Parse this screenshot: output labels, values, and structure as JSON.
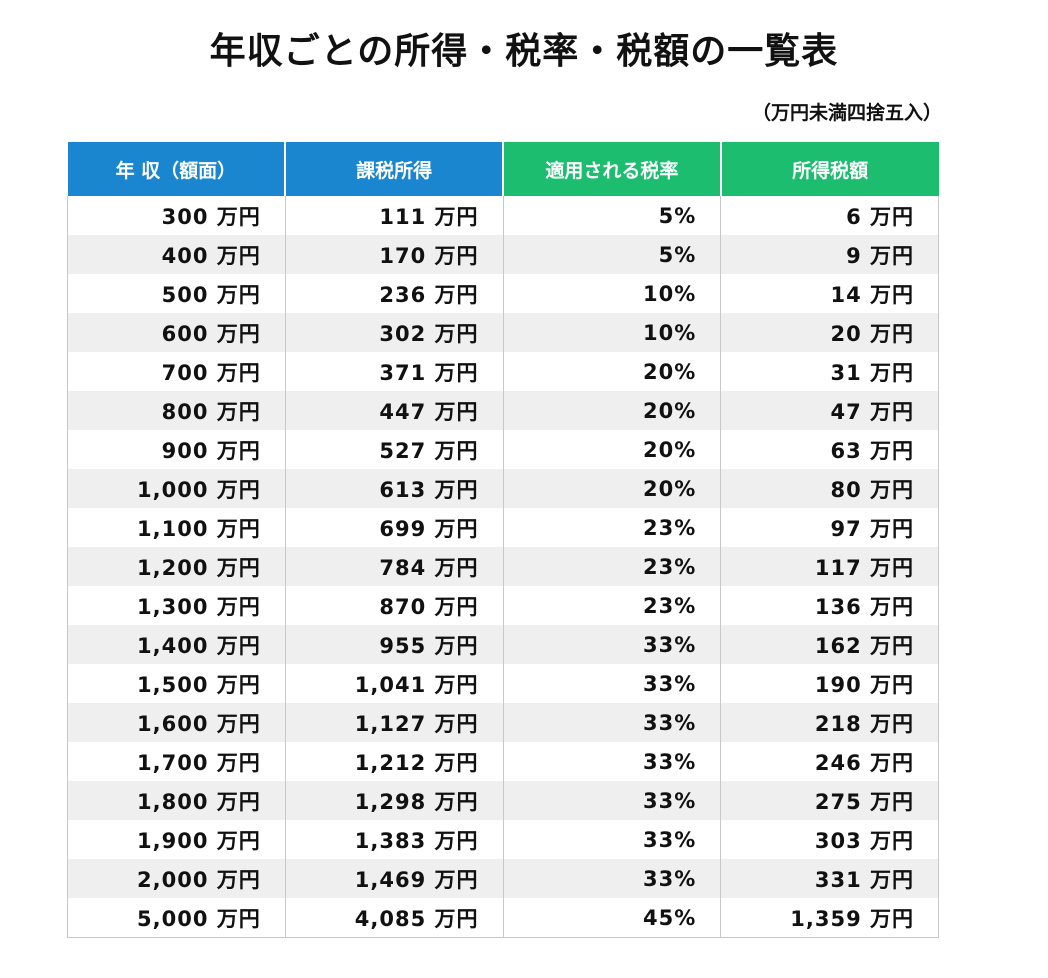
{
  "title": "年収ごとの所得・税率・税額の一覧表",
  "note": "（万円未満四捨五入）",
  "headers": [
    "年 収（額面）",
    "課税所得",
    "適用される税率",
    "所得税額"
  ],
  "rows": [
    [
      "300 万円",
      "111 万円",
      "5%",
      "6 万円"
    ],
    [
      "400 万円",
      "170 万円",
      "5%",
      "9 万円"
    ],
    [
      "500 万円",
      "236 万円",
      "10%",
      "14 万円"
    ],
    [
      "600 万円",
      "302 万円",
      "10%",
      "20 万円"
    ],
    [
      "700 万円",
      "371 万円",
      "20%",
      "31 万円"
    ],
    [
      "800 万円",
      "447 万円",
      "20%",
      "47 万円"
    ],
    [
      "900 万円",
      "527 万円",
      "20%",
      "63 万円"
    ],
    [
      "1,000 万円",
      "613 万円",
      "20%",
      "80 万円"
    ],
    [
      "1,100 万円",
      "699 万円",
      "23%",
      "97 万円"
    ],
    [
      "1,200 万円",
      "784 万円",
      "23%",
      "117 万円"
    ],
    [
      "1,300 万円",
      "870 万円",
      "23%",
      "136 万円"
    ],
    [
      "1,400 万円",
      "955 万円",
      "33%",
      "162 万円"
    ],
    [
      "1,500 万円",
      "1,041 万円",
      "33%",
      "190 万円"
    ],
    [
      "1,600 万円",
      "1,127 万円",
      "33%",
      "218 万円"
    ],
    [
      "1,700 万円",
      "1,212 万円",
      "33%",
      "246 万円"
    ],
    [
      "1,800 万円",
      "1,298 万円",
      "33%",
      "275 万円"
    ],
    [
      "1,900 万円",
      "1,383 万円",
      "33%",
      "303 万円"
    ],
    [
      "2,000 万円",
      "1,469 万円",
      "33%",
      "331 万円"
    ],
    [
      "5,000 万円",
      "4,085 万円",
      "45%",
      "1,359 万円"
    ]
  ],
  "colors": {
    "header_blue": "#1a86d0",
    "header_green": "#1cbd6f",
    "row_alt": "#efefef"
  }
}
